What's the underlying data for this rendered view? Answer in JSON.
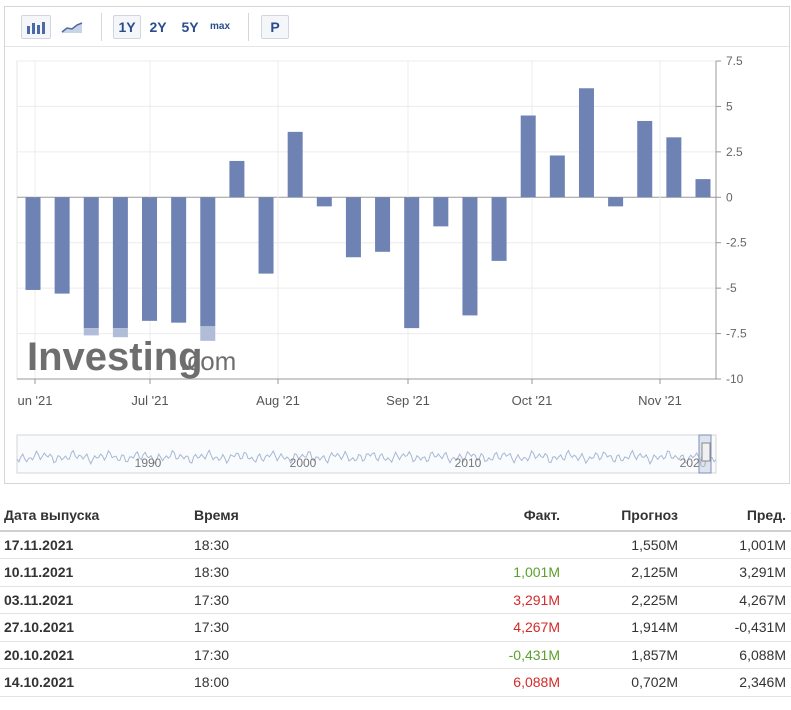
{
  "toolbar": {
    "range_1y": "1Y",
    "range_2y": "2Y",
    "range_5y": "5Y",
    "range_max": "max",
    "p_button": "P"
  },
  "watermark": {
    "brand": "Investing",
    "suffix": ".com"
  },
  "navigator": {
    "years": [
      "1990",
      "2000",
      "2010",
      "2020"
    ]
  },
  "chart_data": {
    "type": "bar",
    "x_tick_labels": [
      "un '21",
      "Jul '21",
      "Aug '21",
      "Sep '21",
      "Oct '21",
      "Nov '21"
    ],
    "y_tick_labels": [
      "7.5",
      "5",
      "2.5",
      "0",
      "-2.5",
      "-5",
      "-7.5",
      "-10"
    ],
    "ylim": [
      -10,
      7.5
    ],
    "y_ticks": [
      7.5,
      5,
      2.5,
      0,
      -2.5,
      -5,
      -7.5,
      -10
    ],
    "grid": true,
    "values": [
      -5.1,
      -5.3,
      -7.2,
      -7.2,
      -6.8,
      -6.9,
      -7.1,
      2.0,
      -4.2,
      3.6,
      -0.5,
      -3.3,
      -3.0,
      -7.2,
      -1.6,
      -6.5,
      -3.5,
      4.5,
      2.3,
      6.0,
      -0.5,
      4.2,
      3.3,
      1.0
    ],
    "forecast_extra": [
      0,
      0,
      -0.4,
      -0.5,
      0,
      0,
      -0.8,
      0,
      0,
      0,
      0,
      0,
      0,
      0,
      0,
      0,
      0,
      0,
      0,
      0,
      0,
      0,
      0,
      0
    ],
    "bar_color": "#6e82b3",
    "forecast_color": "#b1bcd8"
  },
  "table": {
    "headers": {
      "date": "Дата выпуска",
      "time": "Время",
      "actual": "Факт.",
      "forecast": "Прогноз",
      "previous": "Пред."
    },
    "rows": [
      {
        "date": "17.11.2021",
        "time": "18:30",
        "actual": "",
        "actual_color": "",
        "forecast": "1,550M",
        "previous": "1,001M"
      },
      {
        "date": "10.11.2021",
        "time": "18:30",
        "actual": "1,001M",
        "actual_color": "green",
        "forecast": "2,125M",
        "previous": "3,291M"
      },
      {
        "date": "03.11.2021",
        "time": "17:30",
        "actual": "3,291M",
        "actual_color": "red",
        "forecast": "2,225M",
        "previous": "4,267M"
      },
      {
        "date": "27.10.2021",
        "time": "17:30",
        "actual": "4,267M",
        "actual_color": "red",
        "forecast": "1,914M",
        "previous": "-0,431M"
      },
      {
        "date": "20.10.2021",
        "time": "17:30",
        "actual": "-0,431M",
        "actual_color": "green",
        "forecast": "1,857M",
        "previous": "6,088M"
      },
      {
        "date": "14.10.2021",
        "time": "18:00",
        "actual": "6,088M",
        "actual_color": "red",
        "forecast": "0,702M",
        "previous": "2,346M"
      }
    ]
  }
}
